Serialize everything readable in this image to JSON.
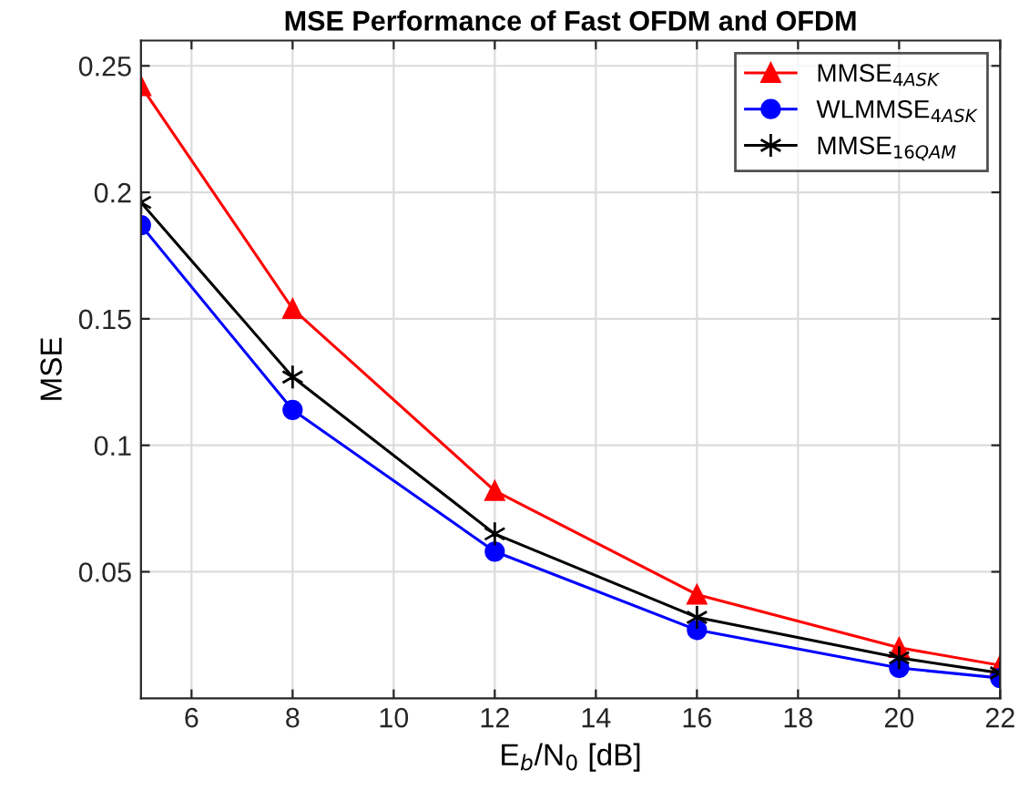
{
  "chart_data": {
    "type": "line",
    "title": "MSE Performance of Fast OFDM and OFDM",
    "xlabel": "E$_{b}$/N$_{0}$ [dB]",
    "ylabel": "MSE",
    "x": [
      5,
      8,
      12,
      16,
      20,
      22
    ],
    "series": [
      {
        "name": "MMSE$_{4ASK}$",
        "color": "#ff0000",
        "marker": "triangle",
        "values": [
          0.242,
          0.154,
          0.082,
          0.041,
          0.02,
          0.013
        ]
      },
      {
        "name": "WLMMSE$_{4ASK}$",
        "color": "#0000ff",
        "marker": "circle",
        "values": [
          0.187,
          0.114,
          0.058,
          0.027,
          0.012,
          0.008
        ]
      },
      {
        "name": "MMSE$_{16QAM}$",
        "color": "#000000",
        "marker": "cross",
        "values": [
          0.196,
          0.127,
          0.065,
          0.032,
          0.016,
          0.01
        ]
      }
    ],
    "xlim": [
      5,
      22
    ],
    "xticks": [
      6,
      8,
      10,
      12,
      14,
      16,
      18,
      20,
      22
    ],
    "ylim": [
      0,
      0.26
    ],
    "yticks": [
      0.05,
      0.1,
      0.15,
      0.2,
      0.25
    ],
    "grid": true,
    "legend": "top right",
    "line_style": "solid"
  }
}
